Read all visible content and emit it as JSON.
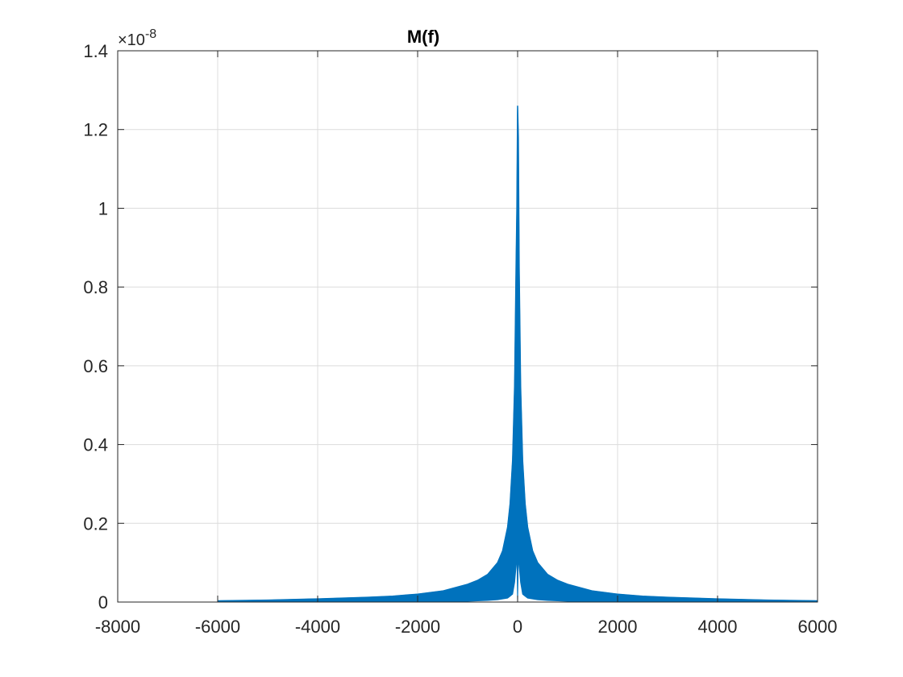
{
  "colors": {
    "series": "#0072BD",
    "grid": "#dcdcdc",
    "axis": "#262626",
    "background": "#ffffff"
  },
  "chart_data": {
    "type": "line",
    "title": "M(f)",
    "xlabel": "",
    "ylabel": "",
    "xlim": [
      -8000,
      6000
    ],
    "ylim": [
      0,
      1.4
    ],
    "y_multiplier_label": "×10",
    "y_multiplier_exponent": "-8",
    "x_ticks": [
      -8000,
      -6000,
      -4000,
      -2000,
      0,
      2000,
      4000,
      6000
    ],
    "x_tick_labels": [
      "-8000",
      "-6000",
      "-4000",
      "-2000",
      "0",
      "2000",
      "4000",
      "6000"
    ],
    "y_ticks": [
      0,
      0.2,
      0.4,
      0.6,
      0.8,
      1,
      1.2,
      1.4
    ],
    "y_tick_labels": [
      "0",
      "0.2",
      "0.4",
      "0.6",
      "0.8",
      "1",
      "1.2",
      "1.4"
    ],
    "grid": true,
    "legend": "none",
    "series": [
      {
        "note_units": "y values in units of 1e-8",
        "x": [
          -6000,
          -5000,
          -4000,
          -3000,
          -2500,
          -2000,
          -1500,
          -1000,
          -800,
          -600,
          -400,
          -300,
          -200,
          -150,
          -100,
          -60,
          -30,
          -15,
          0,
          15,
          30,
          60,
          100,
          150,
          200,
          300,
          400,
          600,
          800,
          1000,
          1500,
          2000,
          2500,
          3000,
          4000,
          5000,
          6000
        ],
        "y_upper": [
          0.003,
          0.005,
          0.008,
          0.012,
          0.015,
          0.02,
          0.028,
          0.045,
          0.055,
          0.07,
          0.1,
          0.13,
          0.19,
          0.25,
          0.36,
          0.55,
          0.85,
          1.0,
          1.26,
          1.18,
          0.85,
          0.55,
          0.36,
          0.25,
          0.19,
          0.13,
          0.1,
          0.07,
          0.055,
          0.045,
          0.028,
          0.02,
          0.015,
          0.012,
          0.008,
          0.005,
          0.003
        ],
        "y_lower": [
          0,
          0,
          0,
          0,
          0,
          0,
          0,
          0.002,
          0.003,
          0.004,
          0.006,
          0.008,
          0.01,
          0.015,
          0.02,
          0.05,
          0.09,
          0.12,
          0.0,
          0.12,
          0.09,
          0.05,
          0.02,
          0.015,
          0.01,
          0.008,
          0.006,
          0.004,
          0.003,
          0.002,
          0,
          0,
          0,
          0,
          0,
          0,
          0
        ]
      }
    ]
  }
}
